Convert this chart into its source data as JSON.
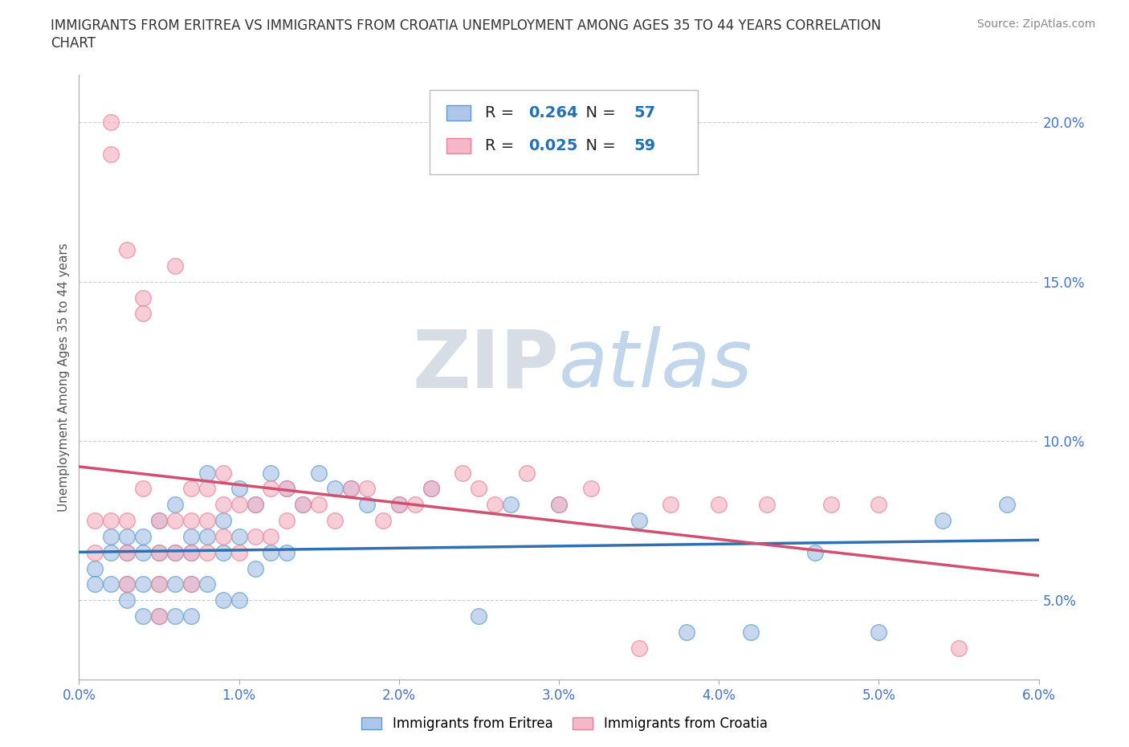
{
  "title_line1": "IMMIGRANTS FROM ERITREA VS IMMIGRANTS FROM CROATIA UNEMPLOYMENT AMONG AGES 35 TO 44 YEARS CORRELATION",
  "title_line2": "CHART",
  "source": "Source: ZipAtlas.com",
  "ylabel": "Unemployment Among Ages 35 to 44 years",
  "xlim": [
    0.0,
    0.06
  ],
  "ylim": [
    0.025,
    0.215
  ],
  "xticks": [
    0.0,
    0.01,
    0.02,
    0.03,
    0.04,
    0.05,
    0.06
  ],
  "yticks": [
    0.05,
    0.1,
    0.15,
    0.2
  ],
  "ytick_labels": [
    "5.0%",
    "10.0%",
    "15.0%",
    "20.0%"
  ],
  "xtick_labels": [
    "0.0%",
    "1.0%",
    "2.0%",
    "3.0%",
    "4.0%",
    "5.0%",
    "6.0%"
  ],
  "eritrea_color": "#aec6e8",
  "eritrea_edge": "#5b9bd5",
  "eritrea_line": "#3070b0",
  "croatia_color": "#f4b8c8",
  "croatia_edge": "#e8829a",
  "croatia_line": "#d05070",
  "R_eritrea": 0.264,
  "N_eritrea": 57,
  "R_croatia": 0.025,
  "N_croatia": 59,
  "label_eritrea": "Immigrants from Eritrea",
  "label_croatia": "Immigrants from Croatia",
  "watermark": "ZIPatlas",
  "watermark_color": "#d0dff0",
  "background_color": "#ffffff",
  "grid_color": "#cccccc",
  "tick_color": "#4472c4",
  "eritrea_x": [
    0.001,
    0.001,
    0.002,
    0.002,
    0.002,
    0.003,
    0.003,
    0.003,
    0.003,
    0.004,
    0.004,
    0.004,
    0.004,
    0.005,
    0.005,
    0.005,
    0.005,
    0.006,
    0.006,
    0.006,
    0.006,
    0.007,
    0.007,
    0.007,
    0.007,
    0.008,
    0.008,
    0.008,
    0.009,
    0.009,
    0.009,
    0.01,
    0.01,
    0.01,
    0.011,
    0.011,
    0.012,
    0.012,
    0.013,
    0.013,
    0.014,
    0.015,
    0.016,
    0.017,
    0.018,
    0.02,
    0.022,
    0.025,
    0.027,
    0.03,
    0.035,
    0.038,
    0.042,
    0.046,
    0.05,
    0.054,
    0.058
  ],
  "eritrea_y": [
    0.06,
    0.055,
    0.07,
    0.065,
    0.055,
    0.07,
    0.065,
    0.055,
    0.05,
    0.07,
    0.065,
    0.055,
    0.045,
    0.075,
    0.065,
    0.055,
    0.045,
    0.08,
    0.065,
    0.055,
    0.045,
    0.07,
    0.065,
    0.055,
    0.045,
    0.09,
    0.07,
    0.055,
    0.075,
    0.065,
    0.05,
    0.085,
    0.07,
    0.05,
    0.08,
    0.06,
    0.09,
    0.065,
    0.085,
    0.065,
    0.08,
    0.09,
    0.085,
    0.085,
    0.08,
    0.08,
    0.085,
    0.045,
    0.08,
    0.08,
    0.075,
    0.04,
    0.04,
    0.065,
    0.04,
    0.075,
    0.08
  ],
  "croatia_x": [
    0.001,
    0.001,
    0.002,
    0.002,
    0.002,
    0.003,
    0.003,
    0.003,
    0.003,
    0.004,
    0.004,
    0.004,
    0.005,
    0.005,
    0.005,
    0.005,
    0.006,
    0.006,
    0.006,
    0.007,
    0.007,
    0.007,
    0.007,
    0.008,
    0.008,
    0.008,
    0.009,
    0.009,
    0.009,
    0.01,
    0.01,
    0.011,
    0.011,
    0.012,
    0.012,
    0.013,
    0.013,
    0.014,
    0.015,
    0.016,
    0.017,
    0.018,
    0.019,
    0.02,
    0.021,
    0.022,
    0.024,
    0.025,
    0.026,
    0.028,
    0.03,
    0.032,
    0.035,
    0.037,
    0.04,
    0.043,
    0.047,
    0.05,
    0.055
  ],
  "croatia_y": [
    0.075,
    0.065,
    0.2,
    0.19,
    0.075,
    0.16,
    0.075,
    0.065,
    0.055,
    0.145,
    0.14,
    0.085,
    0.075,
    0.065,
    0.055,
    0.045,
    0.155,
    0.075,
    0.065,
    0.085,
    0.075,
    0.065,
    0.055,
    0.085,
    0.075,
    0.065,
    0.09,
    0.08,
    0.07,
    0.08,
    0.065,
    0.08,
    0.07,
    0.085,
    0.07,
    0.085,
    0.075,
    0.08,
    0.08,
    0.075,
    0.085,
    0.085,
    0.075,
    0.08,
    0.08,
    0.085,
    0.09,
    0.085,
    0.08,
    0.09,
    0.08,
    0.085,
    0.035,
    0.08,
    0.08,
    0.08,
    0.08,
    0.08,
    0.035
  ]
}
